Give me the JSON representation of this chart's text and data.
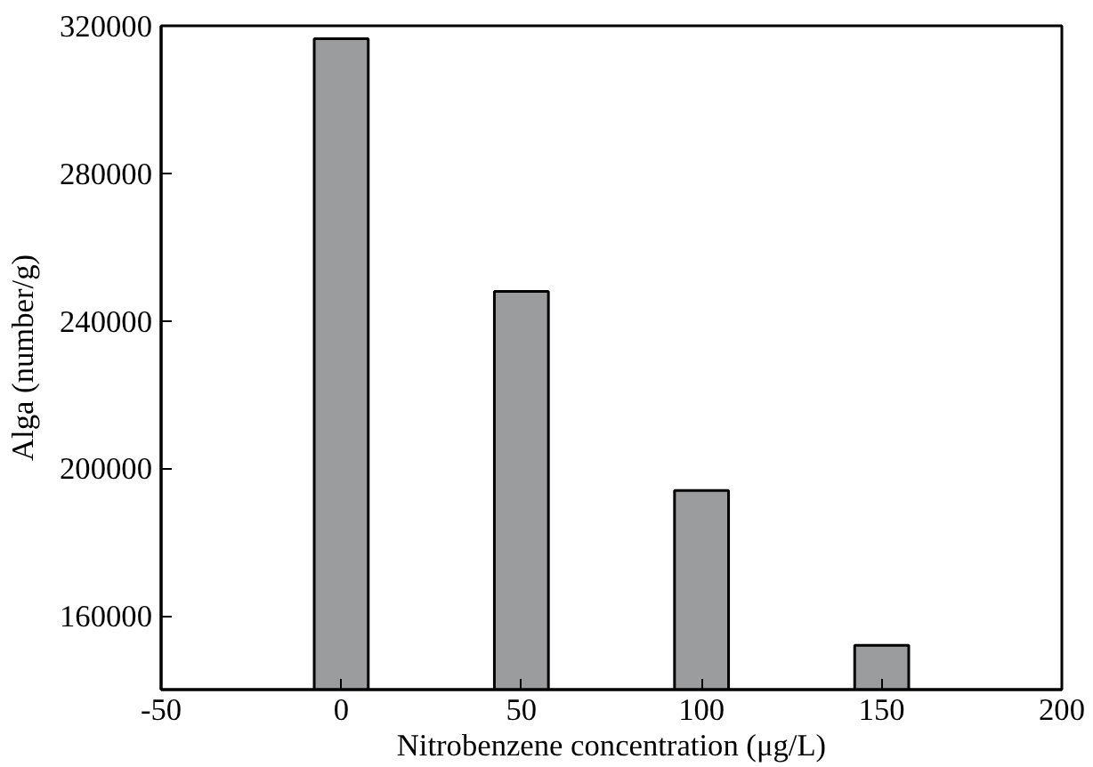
{
  "chart_data": {
    "type": "bar",
    "xlabel": "Nitrobenzene concentration (μg/L)",
    "ylabel": "Alga (number/g)",
    "x": [
      0,
      50,
      100,
      150
    ],
    "values": [
      316500,
      248000,
      194000,
      152000
    ],
    "color": "#9a9c9e",
    "xlim": [
      -50,
      200
    ],
    "xticks": [
      -50,
      0,
      50,
      100,
      150,
      200
    ],
    "ylim": [
      140000,
      320000
    ],
    "yticks": [
      160000,
      200000,
      240000,
      280000,
      320000
    ],
    "grid": false
  }
}
